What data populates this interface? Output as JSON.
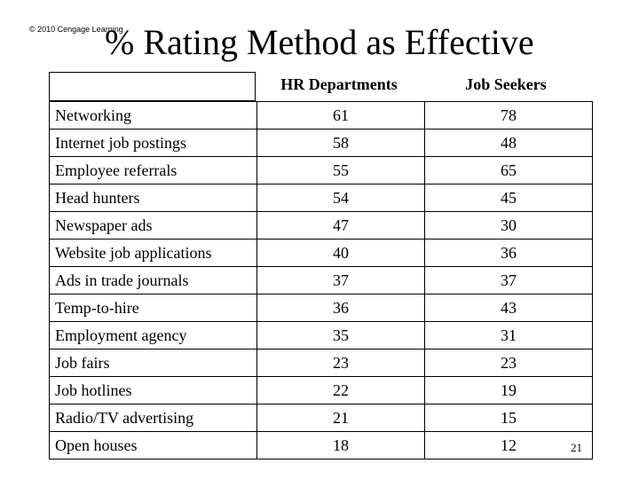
{
  "copyright": "© 2010 Cengage Learning",
  "title": "% Rating Method as Effective",
  "columns": [
    "HR Departments",
    "Job Seekers"
  ],
  "rows": [
    {
      "method": "Networking",
      "hr": "61",
      "seekers": "78"
    },
    {
      "method": "Internet job postings",
      "hr": "58",
      "seekers": "48"
    },
    {
      "method": "Employee referrals",
      "hr": "55",
      "seekers": "65"
    },
    {
      "method": "Head hunters",
      "hr": "54",
      "seekers": "45"
    },
    {
      "method": "Newspaper ads",
      "hr": "47",
      "seekers": "30"
    },
    {
      "method": "Website job applications",
      "hr": "40",
      "seekers": "36"
    },
    {
      "method": "Ads in trade journals",
      "hr": "37",
      "seekers": "37"
    },
    {
      "method": "Temp-to-hire",
      "hr": "36",
      "seekers": "43"
    },
    {
      "method": "Employment agency",
      "hr": "35",
      "seekers": "31"
    },
    {
      "method": "Job fairs",
      "hr": "23",
      "seekers": "23"
    },
    {
      "method": "Job hotlines",
      "hr": "22",
      "seekers": "19"
    },
    {
      "method": "Radio/TV advertising",
      "hr": "21",
      "seekers": "15"
    },
    {
      "method": "Open houses",
      "hr": "18",
      "seekers": "12"
    }
  ],
  "page_number": "21"
}
